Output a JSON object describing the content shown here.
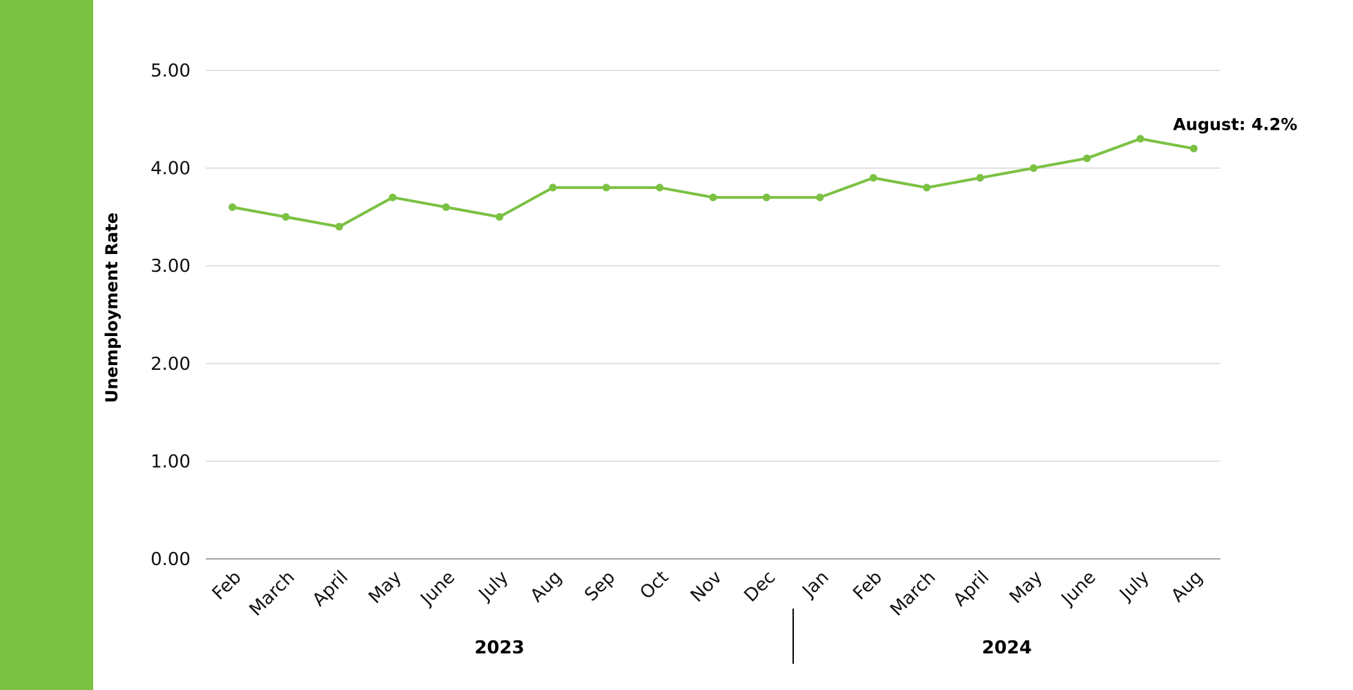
{
  "colors": {
    "accent": "#7bc142",
    "grid": "#d9d9d9",
    "axis": "#a6a6a6"
  },
  "chart_data": {
    "type": "line",
    "ylabel": "Unemployment Rate",
    "ylim": [
      0,
      5
    ],
    "yticks": [
      "0.00",
      "1.00",
      "2.00",
      "3.00",
      "4.00",
      "5.00"
    ],
    "grid": true,
    "categories": [
      "Feb",
      "March",
      "April",
      "May",
      "June",
      "July",
      "Aug",
      "Sep",
      "Oct",
      "Nov",
      "Dec",
      "Jan",
      "Feb",
      "March",
      "April",
      "May",
      "June",
      "July",
      "Aug"
    ],
    "groups": [
      {
        "label": "2023",
        "start": 0,
        "end": 10
      },
      {
        "label": "2024",
        "start": 11,
        "end": 18
      }
    ],
    "series": [
      {
        "values": [
          3.6,
          3.5,
          3.4,
          3.7,
          3.6,
          3.5,
          3.8,
          3.8,
          3.8,
          3.7,
          3.7,
          3.7,
          3.9,
          3.8,
          3.9,
          4.0,
          4.1,
          4.3,
          4.2
        ]
      }
    ],
    "annotation": {
      "text": "August: 4.2%",
      "index": 18
    }
  }
}
